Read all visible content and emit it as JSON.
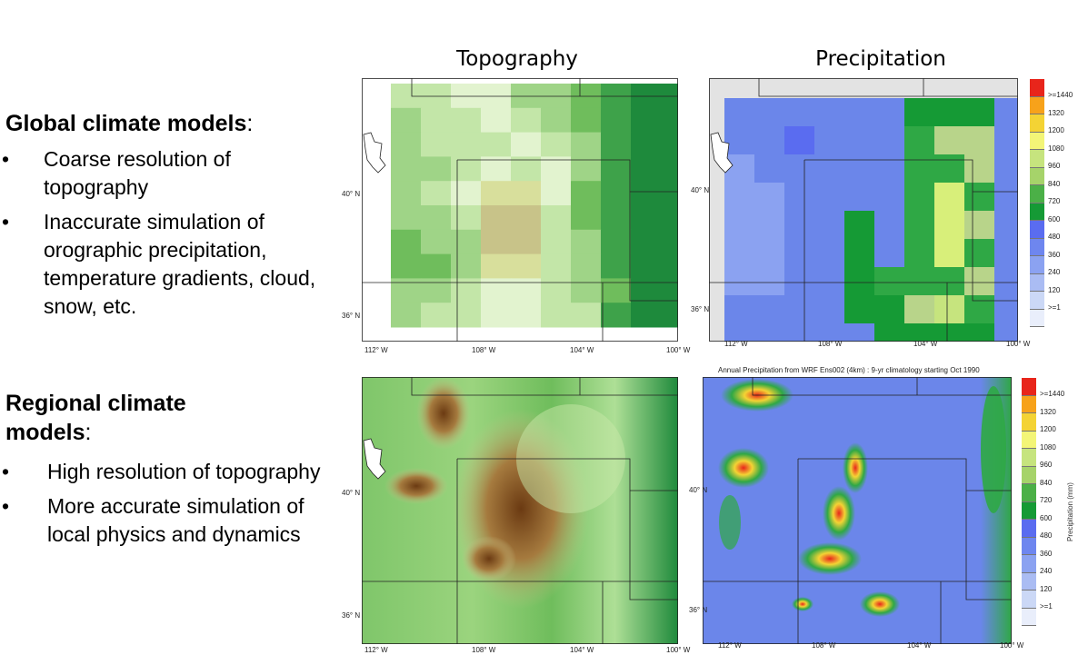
{
  "global": {
    "title": "Global climate models",
    "colon": ":",
    "bullets": [
      "Coarse resolution of topography",
      "Inaccurate simulation of orographic precipitation, temperature gradients, cloud, snow, etc."
    ]
  },
  "regional": {
    "title_line1": "Regional climate",
    "title_line2": "models",
    "colon": ":",
    "bullets": [
      "High resolution of topography",
      "More accurate simulation of local physics and dynamics"
    ]
  },
  "columns": {
    "topography": "Topography",
    "precipitation": "Precipitation"
  },
  "axes": {
    "lat_labels": [
      "40° N",
      "36° N"
    ],
    "lon_labels": [
      "112° W",
      "108° W",
      "104° W",
      "100° W"
    ]
  },
  "wrf_subtitle": "Annual Precipitation from WRF Ens002 (4km)  : 9-yr climatology starting Oct 1990",
  "colorbar": {
    "labels": [
      ">=1440",
      "1320",
      "1200",
      "1080",
      "960",
      "840",
      "720",
      "600",
      "480",
      "360",
      "240",
      "120",
      ">=1"
    ],
    "colors": [
      "#e8251b",
      "#f7a21a",
      "#f4d334",
      "#f3f577",
      "#c6e47e",
      "#a6d36a",
      "#4bb047",
      "#159a35",
      "#5a6cf0",
      "#6e86ef",
      "#8ba2f1",
      "#aabcf3",
      "#cbd8f6",
      "#e9eefb"
    ],
    "axis_label": "Precipitation (mm)"
  },
  "colors": {
    "topo_low": "#1e8a3c",
    "topo_mid": "#9fd487",
    "topo_high": "#c8c389",
    "topo_peak": "#6b3a12",
    "precip_base": "#6b86ea",
    "precip_wet": "#2fa845"
  }
}
